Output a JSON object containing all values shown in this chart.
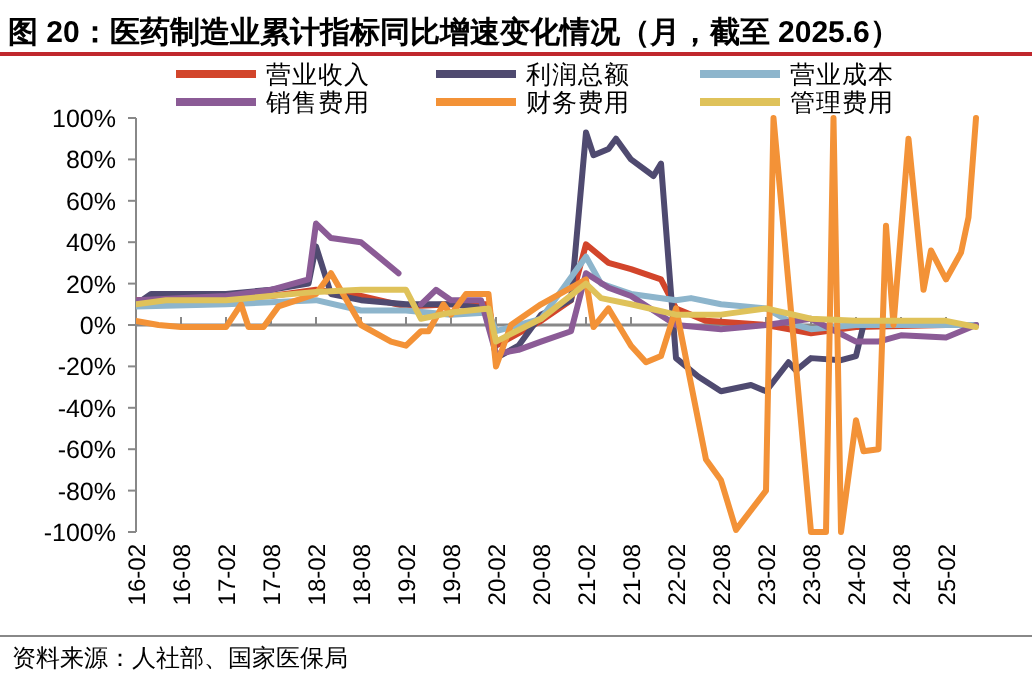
{
  "chart_data": {
    "type": "line",
    "title": "图 20：医药制造业累计指标同比增速变化情况（月，截至 2025.6）",
    "annotations": [
      "资料来源：人社部、国家医保局"
    ],
    "xlim": [
      "2016-02",
      "2025-06"
    ],
    "xticks": [
      {
        "value": "2016-02",
        "label": "16-02"
      },
      {
        "value": "2016-08",
        "label": "16-08"
      },
      {
        "value": "2017-02",
        "label": "17-02"
      },
      {
        "value": "2017-08",
        "label": "17-08"
      },
      {
        "value": "2018-02",
        "label": "18-02"
      },
      {
        "value": "2018-08",
        "label": "18-08"
      },
      {
        "value": "2019-02",
        "label": "19-02"
      },
      {
        "value": "2019-08",
        "label": "19-08"
      },
      {
        "value": "2020-02",
        "label": "20-02"
      },
      {
        "value": "2020-08",
        "label": "20-08"
      },
      {
        "value": "2021-02",
        "label": "21-02"
      },
      {
        "value": "2021-08",
        "label": "21-08"
      },
      {
        "value": "2022-02",
        "label": "22-02"
      },
      {
        "value": "2022-08",
        "label": "22-08"
      },
      {
        "value": "2023-02",
        "label": "23-02"
      },
      {
        "value": "2023-08",
        "label": "23-08"
      },
      {
        "value": "2024-02",
        "label": "24-02"
      },
      {
        "value": "2024-08",
        "label": "24-08"
      },
      {
        "value": "2025-02",
        "label": "25-02"
      }
    ],
    "ylim": [
      -100,
      100
    ],
    "yticks": [
      {
        "value": -100,
        "label": "-100%"
      },
      {
        "value": -80,
        "label": "-80%"
      },
      {
        "value": -60,
        "label": "-60%"
      },
      {
        "value": -40,
        "label": "-40%"
      },
      {
        "value": -20,
        "label": "-20%"
      },
      {
        "value": 0,
        "label": "0%"
      },
      {
        "value": 20,
        "label": "20%"
      },
      {
        "value": 40,
        "label": "40%"
      },
      {
        "value": 60,
        "label": "60%"
      },
      {
        "value": 80,
        "label": "80%"
      },
      {
        "value": 100,
        "label": "100%"
      }
    ],
    "legend": "top",
    "marker": "none",
    "series": [
      {
        "name": "营业收入",
        "color": "#d2452b",
        "x": [
          "2016-02",
          "2016-08",
          "2017-02",
          "2017-08",
          "2018-02",
          "2018-08",
          "2019-02",
          "2019-08",
          "2020-01",
          "2020-02",
          "2020-08",
          "2020-12",
          "2021-02",
          "2021-05",
          "2021-08",
          "2021-12",
          "2022-02",
          "2022-06",
          "2023-02",
          "2023-08",
          "2024-02",
          "2025-02",
          "2025-06"
        ],
        "values": [
          12,
          13,
          13,
          14,
          17,
          14,
          9,
          10,
          10,
          -10,
          2,
          12,
          39,
          30,
          27,
          22,
          8,
          2,
          0,
          -4,
          -1,
          0,
          0
        ]
      },
      {
        "name": "利润总额",
        "color": "#4f4a70",
        "x": [
          "2016-02",
          "2016-04",
          "2017-02",
          "2017-08",
          "2018-01",
          "2018-02",
          "2018-04",
          "2018-08",
          "2019-02",
          "2019-08",
          "2020-01",
          "2020-02",
          "2020-05",
          "2020-08",
          "2020-12",
          "2021-02",
          "2021-03",
          "2021-05",
          "2021-06",
          "2021-08",
          "2021-11",
          "2021-12",
          "2022-02",
          "2022-05",
          "2022-08",
          "2022-12",
          "2023-02",
          "2023-05",
          "2023-06",
          "2023-08",
          "2023-12",
          "2024-02",
          "2024-03",
          "2024-08",
          "2025-02",
          "2025-06"
        ],
        "values": [
          10,
          15,
          15,
          17,
          20,
          38,
          15,
          12,
          10,
          10,
          8,
          -16,
          -10,
          5,
          12,
          93,
          82,
          85,
          90,
          80,
          72,
          78,
          -16,
          -25,
          -32,
          -29,
          -32,
          -18,
          -22,
          -16,
          -17,
          -15,
          0,
          0,
          0,
          0
        ]
      },
      {
        "name": "营业成本",
        "color": "#8db5cc",
        "x": [
          "2016-02",
          "2017-02",
          "2018-02",
          "2018-08",
          "2019-02",
          "2019-08",
          "2020-01",
          "2020-02",
          "2020-08",
          "2021-02",
          "2021-04",
          "2021-08",
          "2022-02",
          "2022-04",
          "2022-08",
          "2023-02",
          "2023-06",
          "2023-08",
          "2024-02",
          "2025-06"
        ],
        "values": [
          9,
          10,
          12,
          7,
          7,
          5,
          6,
          -3,
          3,
          33,
          20,
          15,
          12,
          13,
          10,
          8,
          0,
          -2,
          0,
          0
        ]
      },
      {
        "name": "销售费用",
        "color": "#8b5b96",
        "x": [
          "2016-02",
          "2017-02",
          "2017-08",
          "2018-01",
          "2018-02",
          "2018-04",
          "2018-08",
          "2019-01",
          "2019-02",
          "2019-04",
          "2019-06",
          "2019-08",
          "2019-12",
          "2020-02",
          "2020-05",
          "2020-08",
          "2020-12",
          "2021-02",
          "2021-05",
          "2021-08",
          "2022-02",
          "2022-08",
          "2023-02",
          "2023-08",
          "2024-02",
          "2024-05",
          "2024-08",
          "2025-02",
          "2025-06"
        ],
        "values": [
          12,
          14,
          17,
          22,
          49,
          42,
          40,
          25,
          null,
          10,
          17,
          12,
          12,
          -14,
          -12,
          -8,
          -3,
          25,
          18,
          14,
          0,
          -2,
          0,
          3,
          -8,
          -8,
          -5,
          -6,
          0
        ]
      },
      {
        "name": "财务费用",
        "color": "#f39237",
        "x": [
          "2016-02",
          "2016-05",
          "2016-08",
          "2017-02",
          "2017-04",
          "2017-05",
          "2017-07",
          "2017-09",
          "2018-02",
          "2018-04",
          "2018-08",
          "2018-12",
          "2019-02",
          "2019-04",
          "2019-05",
          "2019-07",
          "2019-08",
          "2019-10",
          "2020-01",
          "2020-02",
          "2020-04",
          "2020-08",
          "2021-02",
          "2021-03",
          "2021-05",
          "2021-08",
          "2021-10",
          "2021-12",
          "2022-02",
          "2022-06",
          "2022-08",
          "2022-10",
          "2023-02",
          "2023-03",
          "2023-08",
          "2023-10",
          "2023-11",
          "2023-12",
          "2024-02",
          "2024-03",
          "2024-05",
          "2024-06",
          "2024-07",
          "2024-09",
          "2024-11",
          "2024-12",
          "2025-02",
          "2025-04",
          "2025-05",
          "2025-06"
        ],
        "values": [
          2,
          0,
          -1,
          -1,
          10,
          -1,
          -1,
          9,
          15,
          25,
          0,
          -8,
          -10,
          -3,
          -3,
          10,
          5,
          15,
          15,
          -20,
          0,
          10,
          22,
          -1,
          8,
          -10,
          -18,
          -15,
          8,
          -65,
          -75,
          -99,
          -80,
          100,
          -100,
          -100,
          100,
          -100,
          -46,
          -61,
          -60,
          48,
          0,
          90,
          17,
          36,
          22,
          35,
          52,
          100
        ]
      },
      {
        "name": "管理费用",
        "color": "#dfc25a",
        "x": [
          "2016-02",
          "2016-06",
          "2017-02",
          "2018-02",
          "2018-08",
          "2019-02",
          "2019-04",
          "2019-08",
          "2020-01",
          "2020-02",
          "2020-08",
          "2021-02",
          "2021-04",
          "2021-08",
          "2022-02",
          "2022-08",
          "2023-02",
          "2023-08",
          "2024-02",
          "2025-02",
          "2025-06"
        ],
        "values": [
          10,
          12,
          12,
          16,
          17,
          17,
          3,
          6,
          8,
          -8,
          3,
          20,
          13,
          10,
          5,
          5,
          8,
          3,
          2,
          2,
          -1
        ]
      }
    ]
  }
}
